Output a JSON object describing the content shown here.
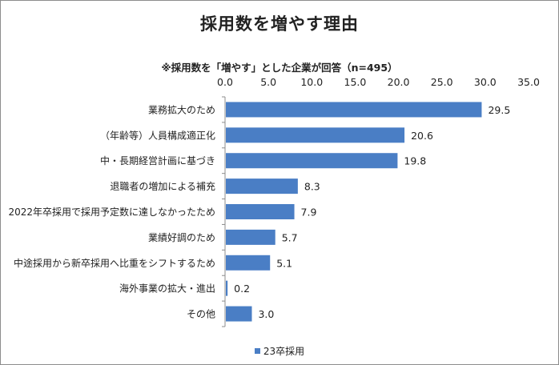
{
  "chart_data": {
    "type": "bar",
    "orientation": "horizontal",
    "title": "採用数を増やす理由",
    "subtitle": "※採用数を「増やす」とした企業が回答（n=495）",
    "categories": [
      "業務拡大のため",
      "（年齢等）人員構成適正化",
      "中・長期経営計画に基づき",
      "退職者の増加による補充",
      "2022年卒採用で採用予定数に達しなかったため",
      "業績好調のため",
      "中途採用から新卒採用へ比重をシフトするため",
      "海外事業の拡大・進出",
      "その他"
    ],
    "series": [
      {
        "name": "23卒採用",
        "values": [
          29.5,
          20.6,
          19.8,
          8.3,
          7.9,
          5.7,
          5.1,
          0.2,
          3.0
        ],
        "color": "#4a7ec5"
      }
    ],
    "xlim": [
      0,
      35
    ],
    "xticks": [
      "0.0",
      "5.0",
      "10.0",
      "15.0",
      "20.0",
      "25.0",
      "30.0",
      "35.0"
    ],
    "xaxis_position": "top",
    "grid": false,
    "legend_position": "bottom"
  }
}
